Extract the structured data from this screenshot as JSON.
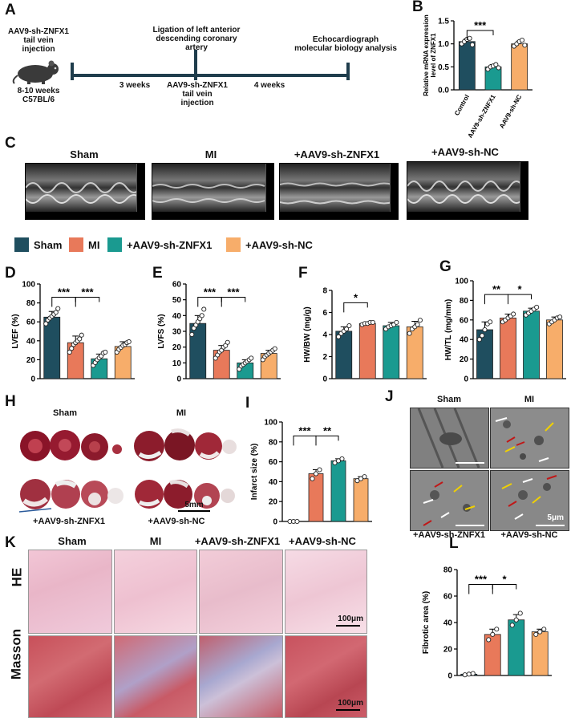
{
  "panels": {
    "A": "A",
    "B": "B",
    "C": "C",
    "D": "D",
    "E": "E",
    "F": "F",
    "G": "G",
    "H": "H",
    "I": "I",
    "J": "J",
    "K": "K",
    "L": "L"
  },
  "timeline": {
    "step1": "AAV9-sh-ZNFX1\ntail vein\ninjection",
    "mouse": "8-10 weeks\nC57BL/6",
    "step2": "Ligation of left anterior\ndescending coronary\nartery",
    "step3": "Echocardiograph\nmolecular biology analysis",
    "interval1": "3 weeks",
    "interval2": "4 weeks",
    "mid_injection": "AAV9-sh-ZNFX1\ntail vein\ninjection"
  },
  "echo_labels": [
    "Sham",
    "MI",
    "+AAV9-sh-ZNFX1",
    "+AAV9-sh-NC"
  ],
  "legend": [
    {
      "label": "Sham",
      "color": "#1f4e5f"
    },
    {
      "label": "MI",
      "color": "#e8795a"
    },
    {
      "label": "+AAV9-sh-ZNFX1",
      "color": "#1a9a90"
    },
    {
      "label": "+AAV9-sh-NC",
      "color": "#f7ad6a"
    }
  ],
  "H": {
    "top_left": "Sham",
    "top_right": "MI",
    "bottom_left": "+AAV9-sh-ZNFX1",
    "bottom_right": "+AAV9-sh-NC",
    "scale": "5mm"
  },
  "J": {
    "top_left": "Sham",
    "top_right": "MI",
    "bottom_left": "+AAV9-sh-ZNFX1",
    "bottom_right": "+AAV9-sh-NC",
    "scale": "5μm"
  },
  "K": {
    "cols": [
      "Sham",
      "MI",
      "+AAV9-sh-ZNFX1",
      "+AAV9-sh-NC"
    ],
    "row1": "HE",
    "row2": "Masson",
    "scale1": "100μm",
    "scale2": "100μm"
  },
  "chart_data": [
    {
      "id": "B",
      "type": "bar",
      "categories": [
        "Control",
        "AAV9-sh-ZNFX1",
        "AAV9-sh-NC"
      ],
      "values": [
        1.05,
        0.5,
        1.0
      ],
      "colors": [
        "#1f4e5f",
        "#1a9a90",
        "#f7ad6a"
      ],
      "errors": [
        0.06,
        0.05,
        0.06
      ],
      "points": [
        [
          1.0,
          1.05,
          1.1,
          1.12,
          0.98
        ],
        [
          0.45,
          0.5,
          0.52,
          0.55,
          0.48
        ],
        [
          0.95,
          1.0,
          1.05,
          1.08,
          0.97
        ]
      ],
      "ylabel": "Relative mRNA expression\nlevel of ZNFX1",
      "ylim": [
        0,
        1.5
      ],
      "yticks": [
        "0.0",
        "0.5",
        "1.0",
        "1.5"
      ],
      "yticks_v": [
        0,
        0.5,
        1.0,
        1.5
      ],
      "sig": [
        {
          "a": 0,
          "b": 1,
          "label": "***"
        }
      ]
    },
    {
      "id": "D",
      "type": "bar",
      "categories": [
        "Sham",
        "MI",
        "+AAV9-sh-ZNFX1",
        "+AAV9-sh-NC"
      ],
      "values": [
        65,
        38,
        21,
        34
      ],
      "colors": [
        "#1f4e5f",
        "#e8795a",
        "#1a9a90",
        "#f7ad6a"
      ],
      "errors": [
        6,
        7,
        5,
        5
      ],
      "points": [
        [
          58,
          62,
          64,
          66,
          68,
          70,
          74
        ],
        [
          28,
          32,
          36,
          38,
          40,
          42,
          46
        ],
        [
          14,
          17,
          20,
          22,
          24,
          27,
          28
        ],
        [
          28,
          31,
          33,
          35,
          36,
          38,
          39
        ]
      ],
      "ylabel": "LVEF (%)",
      "ylim": [
        0,
        100
      ],
      "yticks": [
        "0",
        "20",
        "40",
        "60",
        "80",
        "100"
      ],
      "yticks_v": [
        0,
        20,
        40,
        60,
        80,
        100
      ],
      "sig": [
        {
          "a": 0,
          "b": 1,
          "label": "***"
        },
        {
          "a": 1,
          "b": 2,
          "label": "***"
        }
      ]
    },
    {
      "id": "E",
      "type": "bar",
      "categories": [
        "Sham",
        "MI",
        "+AAV9-sh-ZNFX1",
        "+AAV9-sh-NC"
      ],
      "values": [
        35,
        18,
        10,
        16
      ],
      "colors": [
        "#1f4e5f",
        "#e8795a",
        "#1a9a90",
        "#f7ad6a"
      ],
      "errors": [
        5,
        3,
        2,
        2
      ],
      "points": [
        [
          28,
          32,
          34,
          36,
          38,
          40,
          44
        ],
        [
          13,
          15,
          17,
          18,
          20,
          21,
          23
        ],
        [
          6,
          8,
          9,
          10,
          11,
          12,
          13
        ],
        [
          12,
          14,
          15,
          16,
          17,
          18,
          19
        ]
      ],
      "ylabel": "LVFS (%)",
      "ylim": [
        0,
        60
      ],
      "yticks": [
        "0",
        "10",
        "20",
        "30",
        "40",
        "50",
        "60"
      ],
      "yticks_v": [
        0,
        10,
        20,
        30,
        40,
        50,
        60
      ],
      "sig": [
        {
          "a": 0,
          "b": 1,
          "label": "***"
        },
        {
          "a": 1,
          "b": 2,
          "label": "***"
        }
      ]
    },
    {
      "id": "F",
      "type": "bar",
      "categories": [
        "Sham",
        "MI",
        "+AAV9-sh-ZNFX1",
        "+AAV9-sh-NC"
      ],
      "values": [
        4.3,
        5.0,
        4.8,
        4.7
      ],
      "colors": [
        "#1f4e5f",
        "#e8795a",
        "#1a9a90",
        "#f7ad6a"
      ],
      "errors": [
        0.4,
        0.1,
        0.3,
        0.5
      ],
      "points": [
        [
          3.8,
          4.1,
          4.3,
          4.5,
          4.8
        ],
        [
          4.9,
          5.0,
          5.0,
          5.1,
          5.1
        ],
        [
          4.5,
          4.7,
          4.8,
          4.9,
          5.1
        ],
        [
          4.1,
          4.5,
          4.7,
          4.9,
          5.3
        ]
      ],
      "ylabel": "HW/BW (mg/g)",
      "ylim": [
        0,
        8
      ],
      "yticks": [
        "0",
        "2",
        "4",
        "6",
        "8"
      ],
      "yticks_v": [
        0,
        2,
        4,
        6,
        8
      ],
      "sig": [
        {
          "a": 0,
          "b": 1,
          "label": "*"
        }
      ]
    },
    {
      "id": "G",
      "type": "bar",
      "categories": [
        "Sham",
        "MI",
        "+AAV9-sh-ZNFX1",
        "+AAV9-sh-NC"
      ],
      "values": [
        50,
        62,
        69,
        60
      ],
      "colors": [
        "#1f4e5f",
        "#e8795a",
        "#1a9a90",
        "#f7ad6a"
      ],
      "errors": [
        8,
        4,
        3,
        3
      ],
      "points": [
        [
          40,
          44,
          50,
          56,
          58
        ],
        [
          58,
          60,
          62,
          64,
          66
        ],
        [
          65,
          67,
          69,
          71,
          73
        ],
        [
          56,
          58,
          60,
          62,
          63
        ]
      ],
      "ylabel": "HW/TL (mg/mm)",
      "ylim": [
        0,
        100
      ],
      "yticks": [
        "0",
        "20",
        "40",
        "60",
        "80",
        "100"
      ],
      "yticks_v": [
        0,
        20,
        40,
        60,
        80,
        100
      ],
      "sig": [
        {
          "a": 0,
          "b": 1,
          "label": "**"
        },
        {
          "a": 1,
          "b": 2,
          "label": "*"
        }
      ]
    },
    {
      "id": "I",
      "type": "bar",
      "categories": [
        "Sham",
        "MI",
        "+AAV9-sh-ZNFX1",
        "+AAV9-sh-NC"
      ],
      "values": [
        0,
        48,
        61,
        43
      ],
      "colors": [
        "#1f4e5f",
        "#e8795a",
        "#1a9a90",
        "#f7ad6a"
      ],
      "errors": [
        0,
        4,
        2,
        2
      ],
      "points": [
        [
          0,
          0,
          0
        ],
        [
          43,
          48,
          52
        ],
        [
          59,
          61,
          63
        ],
        [
          41,
          43,
          45
        ]
      ],
      "ylabel": "Infarct size (%)",
      "ylim": [
        0,
        100
      ],
      "yticks": [
        "0",
        "20",
        "40",
        "60",
        "80",
        "100"
      ],
      "yticks_v": [
        0,
        20,
        40,
        60,
        80,
        100
      ],
      "sig": [
        {
          "a": 0,
          "b": 1,
          "label": "***"
        },
        {
          "a": 1,
          "b": 2,
          "label": "**"
        }
      ]
    },
    {
      "id": "L",
      "type": "bar",
      "categories": [
        "Sham",
        "MI",
        "+AAV9-sh-ZNFX1",
        "+AAV9-sh-NC"
      ],
      "values": [
        1,
        31,
        42,
        33
      ],
      "colors": [
        "#1f4e5f",
        "#e8795a",
        "#1a9a90",
        "#f7ad6a"
      ],
      "errors": [
        0.5,
        4,
        4,
        2
      ],
      "points": [
        [
          0.5,
          1,
          1.5
        ],
        [
          27,
          31,
          35
        ],
        [
          38,
          42,
          47
        ],
        [
          31,
          33,
          35
        ]
      ],
      "ylabel": "Fibrotic area (%)",
      "ylim": [
        0,
        80
      ],
      "yticks": [
        "0",
        "20",
        "40",
        "60",
        "80"
      ],
      "yticks_v": [
        0,
        20,
        40,
        60,
        80
      ],
      "sig": [
        {
          "a": 0,
          "b": 1,
          "label": "***"
        },
        {
          "a": 1,
          "b": 2,
          "label": "*"
        }
      ]
    }
  ]
}
